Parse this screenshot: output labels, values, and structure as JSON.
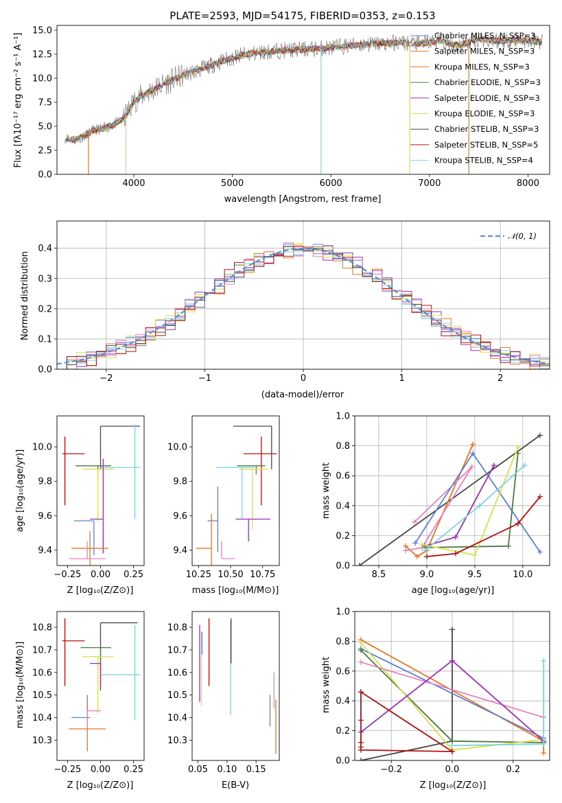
{
  "chart_data": [
    {
      "id": "spectrum",
      "type": "line",
      "title": "PLATE=2593, MJD=54175, FIBERID=0353, z=0.153",
      "xlabel": "wavelength [Angstrom, rest frame]",
      "ylabel": "Flux [fλ10⁻¹⁷ erg cm⁻² s⁻¹ A⁻¹]",
      "xlim": [
        3220,
        8220
      ],
      "ylim": [
        0,
        15.5
      ],
      "xticks": [
        4000,
        5000,
        6000,
        7000,
        8000
      ],
      "yticks": [
        0.0,
        2.5,
        5.0,
        7.5,
        10.0,
        12.5,
        15.0
      ],
      "grid": false,
      "legend_placement": "upper right",
      "continuum": {
        "x": [
          3300,
          3400,
          3500,
          3600,
          3700,
          3800,
          3900,
          4000,
          4100,
          4200,
          4300,
          4500,
          4700,
          4900,
          5100,
          5300,
          5500,
          5700,
          5900,
          6100,
          6300,
          6500,
          6700,
          6900,
          7100,
          7300,
          7500,
          7700,
          7900,
          8100
        ],
        "y": [
          3.8,
          3.6,
          4.0,
          4.6,
          4.8,
          5.2,
          5.8,
          7.6,
          8.3,
          8.8,
          9.4,
          10.3,
          11.0,
          11.8,
          12.4,
          12.7,
          12.9,
          13.0,
          13.1,
          13.3,
          13.5,
          13.6,
          13.7,
          13.6,
          13.9,
          13.4,
          14.1,
          13.9,
          14.0,
          13.8
        ]
      },
      "series": [
        {
          "name": "Chabrier MILES, N_SSP=3",
          "color": "#5b7fd4"
        },
        {
          "name": "Salpeter MILES, N_SSP=3",
          "color": "#e8741c"
        },
        {
          "name": "Kroupa MILES, N_SSP=3",
          "color": "#e8741c"
        },
        {
          "name": "Chabrier ELODIE, N_SSP=3",
          "color": "#4a7a40"
        },
        {
          "name": "Salpeter ELODIE, N_SSP=3",
          "color": "#9a2fb0"
        },
        {
          "name": "Kroupa ELODIE, N_SSP=3",
          "color": "#d7e04a"
        },
        {
          "name": "Chabrier STELIB, N_SSP=3",
          "color": "#444444"
        },
        {
          "name": "Salpeter STELIB, N_SSP=5",
          "color": "#b01010"
        },
        {
          "name": "Kroupa STELIB, N_SSP=4",
          "color": "#7fd4dc"
        }
      ]
    },
    {
      "id": "residuals",
      "type": "line",
      "xlabel": "(data-model)/error",
      "ylabel": "Normed distribution",
      "xlim": [
        -2.5,
        2.5
      ],
      "ylim": [
        0,
        0.49
      ],
      "xticks": [
        -2,
        -1,
        0,
        1,
        2
      ],
      "yticks": [
        0.0,
        0.1,
        0.2,
        0.3,
        0.4
      ],
      "grid": true,
      "legend_placement": "upper right",
      "gaussian_label": "𝒩(0, 1)",
      "gaussian_color": "#5b8fd4",
      "series": [
        {
          "color": "#e8741c",
          "jitter": 0.03
        },
        {
          "color": "#5b7fd4",
          "jitter": 0.025
        },
        {
          "color": "#9a2fb0",
          "jitter": 0.03
        },
        {
          "color": "#d7e04a",
          "jitter": 0.025
        },
        {
          "color": "#7fd4dc",
          "jitter": 0.02
        },
        {
          "color": "#b01010",
          "jitter": 0.03
        },
        {
          "color": "#e880c0",
          "jitter": 0.025
        },
        {
          "color": "#444444",
          "jitter": 0.02
        }
      ]
    },
    {
      "id": "age-vs-Z",
      "type": "scatter",
      "xlabel": "Z [log₁₀(Z/Z⊙)]",
      "ylabel": "age  [log₁₀(age/yr)]",
      "xlim": [
        -0.33,
        0.33
      ],
      "ylim": [
        9.31,
        10.18
      ],
      "xticks": [
        -0.25,
        0.0,
        0.25
      ],
      "xticklabels": [
        "−0.25",
        "0.00",
        "0.25"
      ],
      "yticks": [
        9.4,
        9.6,
        9.8,
        10.0
      ],
      "yticklabels": [
        "9.4",
        "9.6",
        "9.8",
        "10.0"
      ],
      "errorbars": [
        {
          "x": 0.0,
          "xerr": [
            0.0,
            0.3
          ],
          "y": 10.12,
          "yerr": [
            0.25,
            0.0
          ],
          "color": "#444444"
        },
        {
          "x": -0.27,
          "xerr": [
            0.02,
            0.15
          ],
          "y": 9.96,
          "yerr": [
            0.3,
            0.1
          ],
          "color": "#b01010"
        },
        {
          "x": -0.02,
          "xerr": [
            0.17,
            0.1
          ],
          "y": 9.89,
          "yerr": [
            0.05,
            0.0
          ],
          "color": "#4a7a40"
        },
        {
          "x": -0.02,
          "xerr": [
            0.12,
            0.12
          ],
          "y": 9.87,
          "yerr": [
            0.3,
            0.0
          ],
          "color": "#d7e04a"
        },
        {
          "x": 0.26,
          "xerr": [
            0.26,
            0.04
          ],
          "y": 9.88,
          "yerr": [
            0.3,
            0.25
          ],
          "color": "#7fd4dc"
        },
        {
          "x": 0.02,
          "xerr": [
            0.1,
            0.0
          ],
          "y": 9.58,
          "yerr": [
            0.2,
            0.35
          ],
          "color": "#9a2fb0"
        },
        {
          "x": -0.05,
          "xerr": [
            0.15,
            0.0
          ],
          "y": 9.57,
          "yerr": [
            0.2,
            0.0
          ],
          "color": "#5b7fd4"
        },
        {
          "x": -0.08,
          "xerr": [
            0.14,
            0.14
          ],
          "y": 9.41,
          "yerr": [
            0.1,
            0.1
          ],
          "color": "#e8741c"
        },
        {
          "x": -0.1,
          "xerr": [
            0.14,
            0.14
          ],
          "y": 9.35,
          "yerr": [
            0.0,
            0.1
          ],
          "color": "#e880c0"
        }
      ]
    },
    {
      "id": "age-vs-mass",
      "type": "scatter",
      "xlabel": "mass [log₁₀(M/M⊙)]",
      "xlim": [
        10.2,
        10.88
      ],
      "ylim": [
        9.31,
        10.18
      ],
      "xticks": [
        10.25,
        10.5,
        10.75
      ],
      "xticklabels": [
        "10.25",
        "10.50",
        "10.75"
      ],
      "yticks": [
        9.4,
        9.6,
        9.8,
        10.0
      ],
      "yticklabels": [
        "9.4",
        "9.6",
        "9.8",
        "10.0"
      ],
      "errorbars": [
        {
          "x": 10.82,
          "xerr": [
            0.3,
            0.0
          ],
          "y": 10.12,
          "yerr": [
            0.25,
            0.0
          ],
          "color": "#444444"
        },
        {
          "x": 10.74,
          "xerr": [
            0.14,
            0.12
          ],
          "y": 9.96,
          "yerr": [
            0.3,
            0.1
          ],
          "color": "#b01010"
        },
        {
          "x": 10.7,
          "xerr": [
            0.15,
            0.07
          ],
          "y": 9.89,
          "yerr": [
            0.05,
            0.0
          ],
          "color": "#4a7a40"
        },
        {
          "x": 10.67,
          "xerr": [
            0.1,
            0.12
          ],
          "y": 9.87,
          "yerr": [
            0.35,
            0.0
          ],
          "color": "#d7e04a"
        },
        {
          "x": 10.59,
          "xerr": [
            0.2,
            0.1
          ],
          "y": 9.88,
          "yerr": [
            0.3,
            0.0
          ],
          "color": "#7fd4dc"
        },
        {
          "x": 10.64,
          "xerr": [
            0.1,
            0.17
          ],
          "y": 9.58,
          "yerr": [
            0.13,
            0.0
          ],
          "color": "#9a2fb0"
        },
        {
          "x": 10.4,
          "xerr": [
            0.08,
            0.0
          ],
          "y": 9.57,
          "yerr": [
            0.18,
            0.2
          ],
          "color": "#5b7fd4"
        },
        {
          "x": 10.35,
          "xerr": [
            0.12,
            0.0
          ],
          "y": 9.41,
          "yerr": [
            0.1,
            0.2
          ],
          "color": "#e8741c"
        },
        {
          "x": 10.43,
          "xerr": [
            0.0,
            0.1
          ],
          "y": 9.35,
          "yerr": [
            0.0,
            0.1
          ],
          "color": "#e880c0"
        }
      ]
    },
    {
      "id": "weight-vs-age",
      "type": "line",
      "xlabel": "age  [log₁₀(age/yr)]",
      "ylabel": "mass weight",
      "xlim": [
        8.25,
        10.28
      ],
      "ylim": [
        0,
        1.0
      ],
      "xticks": [
        8.5,
        9.0,
        9.5,
        10.0
      ],
      "xticklabels": [
        "8.5",
        "9.0",
        "9.5",
        "10.0"
      ],
      "yticks": [
        0.0,
        0.2,
        0.4,
        0.6,
        0.8,
        1.0
      ],
      "yticklabels": [
        "0.0",
        "0.2",
        "0.4",
        "0.6",
        "0.8",
        "1.0"
      ],
      "grid": true,
      "series": [
        {
          "color": "#444444",
          "x": [
            8.3,
            10.18
          ],
          "y": [
            0.0,
            0.87
          ]
        },
        {
          "color": "#e8741c",
          "x": [
            8.78,
            8.9,
            9.0,
            9.48
          ],
          "y": [
            0.13,
            0.06,
            0.1,
            0.81
          ]
        },
        {
          "color": "#e880c0",
          "x": [
            8.87,
            9.47,
            8.95,
            8.78
          ],
          "y": [
            0.29,
            0.66,
            0.12,
            0.1
          ]
        },
        {
          "color": "#5b7fd4",
          "x": [
            8.88,
            9.48,
            10.18
          ],
          "y": [
            0.15,
            0.75,
            0.09
          ]
        },
        {
          "color": "#9a2fb0",
          "x": [
            8.98,
            9.3,
            9.7
          ],
          "y": [
            0.13,
            0.19,
            0.67
          ]
        },
        {
          "color": "#4a7a40",
          "x": [
            8.98,
            9.85,
            9.95
          ],
          "y": [
            0.12,
            0.13,
            0.75
          ]
        },
        {
          "color": "#d7e04a",
          "x": [
            8.95,
            9.5,
            9.95
          ],
          "y": [
            0.14,
            0.07,
            0.79
          ]
        },
        {
          "color": "#7fd4dc",
          "x": [
            8.98,
            9.55,
            10.02
          ],
          "y": [
            0.1,
            0.4,
            0.67
          ]
        },
        {
          "color": "#b01010",
          "x": [
            9.0,
            9.3,
            9.95,
            10.18
          ],
          "y": [
            0.06,
            0.08,
            0.28,
            0.46
          ]
        }
      ]
    },
    {
      "id": "mass-vs-Z",
      "type": "scatter",
      "xlabel": "Z [log₁₀(Z/Z⊙)]",
      "ylabel": "mass [log₁₀(M/M⊙)]",
      "xlim": [
        -0.33,
        0.33
      ],
      "ylim": [
        10.21,
        10.87
      ],
      "xticks": [
        -0.25,
        0.0,
        0.25
      ],
      "xticklabels": [
        "−0.25",
        "0.00",
        "0.25"
      ],
      "yticks": [
        10.3,
        10.4,
        10.5,
        10.6,
        10.7,
        10.8
      ],
      "yticklabels": [
        "10.3",
        "10.4",
        "10.5",
        "10.6",
        "10.7",
        "10.8"
      ],
      "errorbars": [
        {
          "x": 0.0,
          "xerr": [
            0.0,
            0.28
          ],
          "y": 10.82,
          "yerr": [
            0.3,
            0.0
          ],
          "color": "#444444"
        },
        {
          "x": -0.27,
          "xerr": [
            0.02,
            0.15
          ],
          "y": 10.74,
          "yerr": [
            0.2,
            0.1
          ],
          "color": "#b01010"
        },
        {
          "x": 0.0,
          "xerr": [
            0.15,
            0.08
          ],
          "y": 10.71,
          "yerr": [
            0.1,
            0.0
          ],
          "color": "#4a7a40"
        },
        {
          "x": -0.02,
          "xerr": [
            0.12,
            0.12
          ],
          "y": 10.67,
          "yerr": [
            0.25,
            0.0
          ],
          "color": "#d7e04a"
        },
        {
          "x": 0.26,
          "xerr": [
            0.26,
            0.04
          ],
          "y": 10.59,
          "yerr": [
            0.2,
            0.22
          ],
          "color": "#7fd4dc"
        },
        {
          "x": 0.0,
          "xerr": [
            0.08,
            0.0
          ],
          "y": 10.64,
          "yerr": [
            0.1,
            0.0
          ],
          "color": "#9a2fb0"
        },
        {
          "x": -0.1,
          "xerr": [
            0.12,
            0.02
          ],
          "y": 10.4,
          "yerr": [
            0.05,
            0.1
          ],
          "color": "#5b7fd4"
        },
        {
          "x": -0.1,
          "xerr": [
            0.14,
            0.14
          ],
          "y": 10.35,
          "yerr": [
            0.1,
            0.13
          ],
          "color": "#e8741c"
        },
        {
          "x": -0.1,
          "xerr": [
            0.0,
            0.1
          ],
          "y": 10.43,
          "yerr": [
            0.08,
            0.0
          ],
          "color": "#e880c0"
        }
      ]
    },
    {
      "id": "mass-vs-ebv",
      "type": "scatter",
      "xlabel": "E(B-V)",
      "xlim": [
        0.04,
        0.19
      ],
      "ylim": [
        10.21,
        10.87
      ],
      "xticks": [
        0.05,
        0.1,
        0.15
      ],
      "xticklabels": [
        "0.05",
        "0.10",
        "0.15"
      ],
      "yticks": [
        10.3,
        10.4,
        10.5,
        10.6,
        10.7,
        10.8
      ],
      "yticklabels": [
        "10.3",
        "10.4",
        "10.5",
        "10.6",
        "10.7",
        "10.8"
      ],
      "errorbars": [
        {
          "x": 0.053,
          "xerr": [
            0,
            0
          ],
          "y": 10.67,
          "yerr": [
            0.2,
            0.14
          ],
          "color": "#9a2fb0"
        },
        {
          "x": 0.056,
          "xerr": [
            0,
            0
          ],
          "y": 10.6,
          "yerr": [
            0.15,
            0.18
          ],
          "color": "#d7e04a"
        },
        {
          "x": 0.057,
          "xerr": [
            0,
            0
          ],
          "y": 10.74,
          "yerr": [
            0.06,
            0.04
          ],
          "color": "#5b7fd4"
        },
        {
          "x": 0.069,
          "xerr": [
            0,
            0
          ],
          "y": 10.69,
          "yerr": [
            0.15,
            0.15
          ],
          "color": "#b01010"
        },
        {
          "x": 0.106,
          "xerr": [
            0,
            0
          ],
          "y": 10.62,
          "yerr": [
            0.21,
            0.21
          ],
          "color": "#7fd4dc"
        },
        {
          "x": 0.107,
          "xerr": [
            0,
            0
          ],
          "y": 10.74,
          "yerr": [
            0.1,
            0.1
          ],
          "color": "#444444"
        },
        {
          "x": 0.174,
          "xerr": [
            0,
            0
          ],
          "y": 10.43,
          "yerr": [
            0.07,
            0.07
          ],
          "color": "#5b7fd4"
        },
        {
          "x": 0.181,
          "xerr": [
            0,
            0
          ],
          "y": 10.52,
          "yerr": [
            0.08,
            0.08
          ],
          "color": "#e880c0"
        },
        {
          "x": 0.184,
          "xerr": [
            0,
            0
          ],
          "y": 10.36,
          "yerr": [
            0.12,
            0.12
          ],
          "color": "#e8741c"
        }
      ]
    },
    {
      "id": "weight-vs-Z",
      "type": "line",
      "xlabel": "Z [log₁₀(Z/Z⊙)]",
      "ylabel": "mass weight",
      "xlim": [
        -0.32,
        0.32
      ],
      "ylim": [
        0,
        1.0
      ],
      "xticks": [
        -0.2,
        0.0,
        0.2
      ],
      "xticklabels": [
        "−0.2",
        "0.0",
        "0.2"
      ],
      "yticks": [
        0.0,
        0.2,
        0.4,
        0.6,
        0.8,
        1.0
      ],
      "yticklabels": [
        "0.0",
        "0.2",
        "0.4",
        "0.6",
        "0.8",
        "1.0"
      ],
      "grid": true,
      "series": [
        {
          "color": "#444444",
          "x": [
            -0.3,
            0.0,
            0.0,
            0.0
          ],
          "y": [
            0.0,
            0.13,
            0.88,
            0.13
          ]
        },
        {
          "color": "#e8741c",
          "x": [
            -0.3,
            0.3,
            0.3
          ],
          "y": [
            0.81,
            0.13,
            0.05
          ]
        },
        {
          "color": "#5b7fd4",
          "x": [
            -0.3,
            0.3
          ],
          "y": [
            0.75,
            0.15
          ]
        },
        {
          "color": "#4a7a40",
          "x": [
            -0.3,
            0.0,
            0.3
          ],
          "y": [
            0.74,
            0.13,
            0.12
          ]
        },
        {
          "color": "#d7e04a",
          "x": [
            -0.3,
            0.0,
            0.3
          ],
          "y": [
            0.79,
            0.07,
            0.14
          ]
        },
        {
          "color": "#e880c0",
          "x": [
            -0.3,
            0.3
          ],
          "y": [
            0.66,
            0.29
          ]
        },
        {
          "color": "#9a2fb0",
          "x": [
            -0.3,
            0.0,
            0.3
          ],
          "y": [
            0.19,
            0.67,
            0.13
          ]
        },
        {
          "color": "#b01010",
          "x": [
            -0.3,
            -0.3,
            -0.3,
            -0.3,
            -0.3,
            0.0
          ],
          "y": [
            0.46,
            0.27,
            0.12,
            0.09,
            0.07,
            0.06
          ]
        },
        {
          "color": "#b01010",
          "x": [
            -0.3,
            0.0
          ],
          "y": [
            0.46,
            0.06
          ]
        },
        {
          "color": "#7fd4dc",
          "x": [
            0.0,
            0.3,
            0.3
          ],
          "y": [
            0.1,
            0.11,
            0.67
          ]
        }
      ]
    }
  ]
}
